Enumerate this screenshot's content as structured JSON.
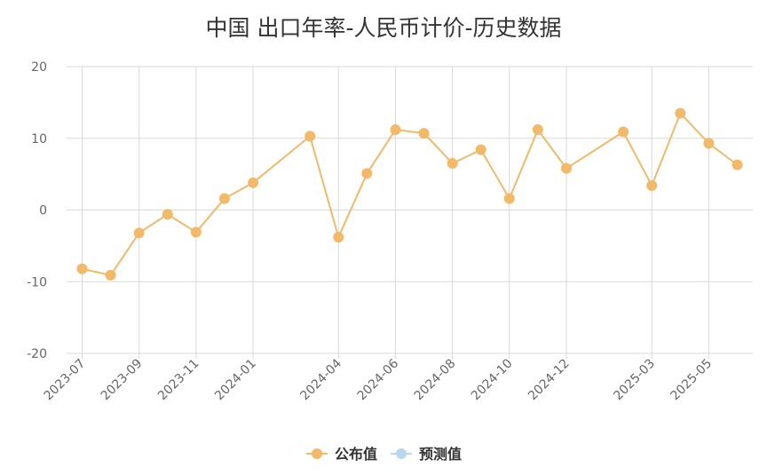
{
  "chart_data": {
    "type": "line",
    "title": "中国 出口年率-人民币计价-历史数据",
    "ylim": [
      -20,
      20
    ],
    "yticks": [
      20,
      10,
      0,
      -10,
      -20
    ],
    "x_tick_labels": [
      "2023-07",
      "2023-09",
      "2023-11",
      "2024-01",
      "2024-04",
      "2024-06",
      "2024-08",
      "2024-10",
      "2024-12",
      "2025-03",
      "2025-05"
    ],
    "grid": true,
    "legend_placement": "bottom-center",
    "series": [
      {
        "name": "公布值",
        "color": "#f2b968",
        "values": [
          {
            "x": "2023-07",
            "y": -8.2
          },
          {
            "x": "2023-08",
            "y": -9.1
          },
          {
            "x": "2023-09",
            "y": -3.2
          },
          {
            "x": "2023-10",
            "y": -0.6
          },
          {
            "x": "2023-11",
            "y": -3.1
          },
          {
            "x": "2023-12",
            "y": 1.6
          },
          {
            "x": "2024-01",
            "y": 3.8
          },
          {
            "x": "2024-03",
            "y": 10.3
          },
          {
            "x": "2024-04",
            "y": -3.8
          },
          {
            "x": "2024-05",
            "y": 5.1
          },
          {
            "x": "2024-06",
            "y": 11.2
          },
          {
            "x": "2024-07",
            "y": 10.7
          },
          {
            "x": "2024-08",
            "y": 6.5
          },
          {
            "x": "2024-09",
            "y": 8.4
          },
          {
            "x": "2024-10",
            "y": 1.6
          },
          {
            "x": "2024-11",
            "y": 11.2
          },
          {
            "x": "2024-12",
            "y": 5.8
          },
          {
            "x": "2025-02",
            "y": 10.9
          },
          {
            "x": "2025-03",
            "y": 3.4
          },
          {
            "x": "2025-04",
            "y": 13.5
          },
          {
            "x": "2025-05",
            "y": 9.3
          },
          {
            "x": "2025-06",
            "y": 6.3
          }
        ]
      },
      {
        "name": "预测值",
        "color": "#b8d8f0",
        "values": []
      }
    ]
  }
}
